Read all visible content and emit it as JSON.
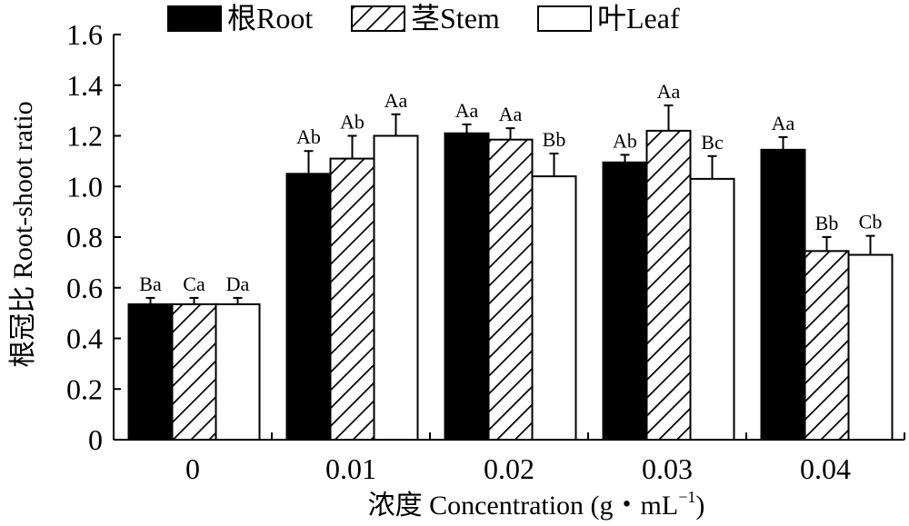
{
  "chart_data": {
    "type": "bar",
    "title": "",
    "xlabel": "浓度 Concentration (g・mL",
    "xlabel_sup": "−1",
    "xlabel_close": ")",
    "ylabel": "根冠比 Root-shoot ratio",
    "ylim": [
      0,
      1.6
    ],
    "yticks": [
      "0",
      "0.2",
      "0.4",
      "0.6",
      "0.8",
      "1.0",
      "1.2",
      "1.4",
      "1.6"
    ],
    "categories": [
      "0",
      "0.01",
      "0.02",
      "0.03",
      "0.04"
    ],
    "series": [
      {
        "name": "根Root",
        "fill": "solid",
        "values": [
          0.535,
          1.05,
          1.21,
          1.095,
          1.145
        ],
        "errors": [
          0.025,
          0.09,
          0.035,
          0.03,
          0.05
        ],
        "labels": [
          "Ba",
          "Ab",
          "Aa",
          "Ab",
          "Aa"
        ]
      },
      {
        "name": "茎Stem",
        "fill": "hatch",
        "values": [
          0.535,
          1.11,
          1.185,
          1.22,
          0.745
        ],
        "errors": [
          0.025,
          0.09,
          0.045,
          0.1,
          0.055
        ],
        "labels": [
          "Ca",
          "Ab",
          "Aa",
          "Aa",
          "Bb"
        ]
      },
      {
        "name": "叶Leaf",
        "fill": "open",
        "values": [
          0.535,
          1.2,
          1.04,
          1.03,
          0.73
        ],
        "errors": [
          0.025,
          0.085,
          0.09,
          0.09,
          0.075
        ],
        "labels": [
          "Da",
          "Aa",
          "Bb",
          "Bc",
          "Cb"
        ]
      }
    ],
    "legend_position": "top",
    "grid": false,
    "colors": {
      "bar_solid": "#000000",
      "bar_open": "#ffffff",
      "stroke": "#000000"
    }
  }
}
